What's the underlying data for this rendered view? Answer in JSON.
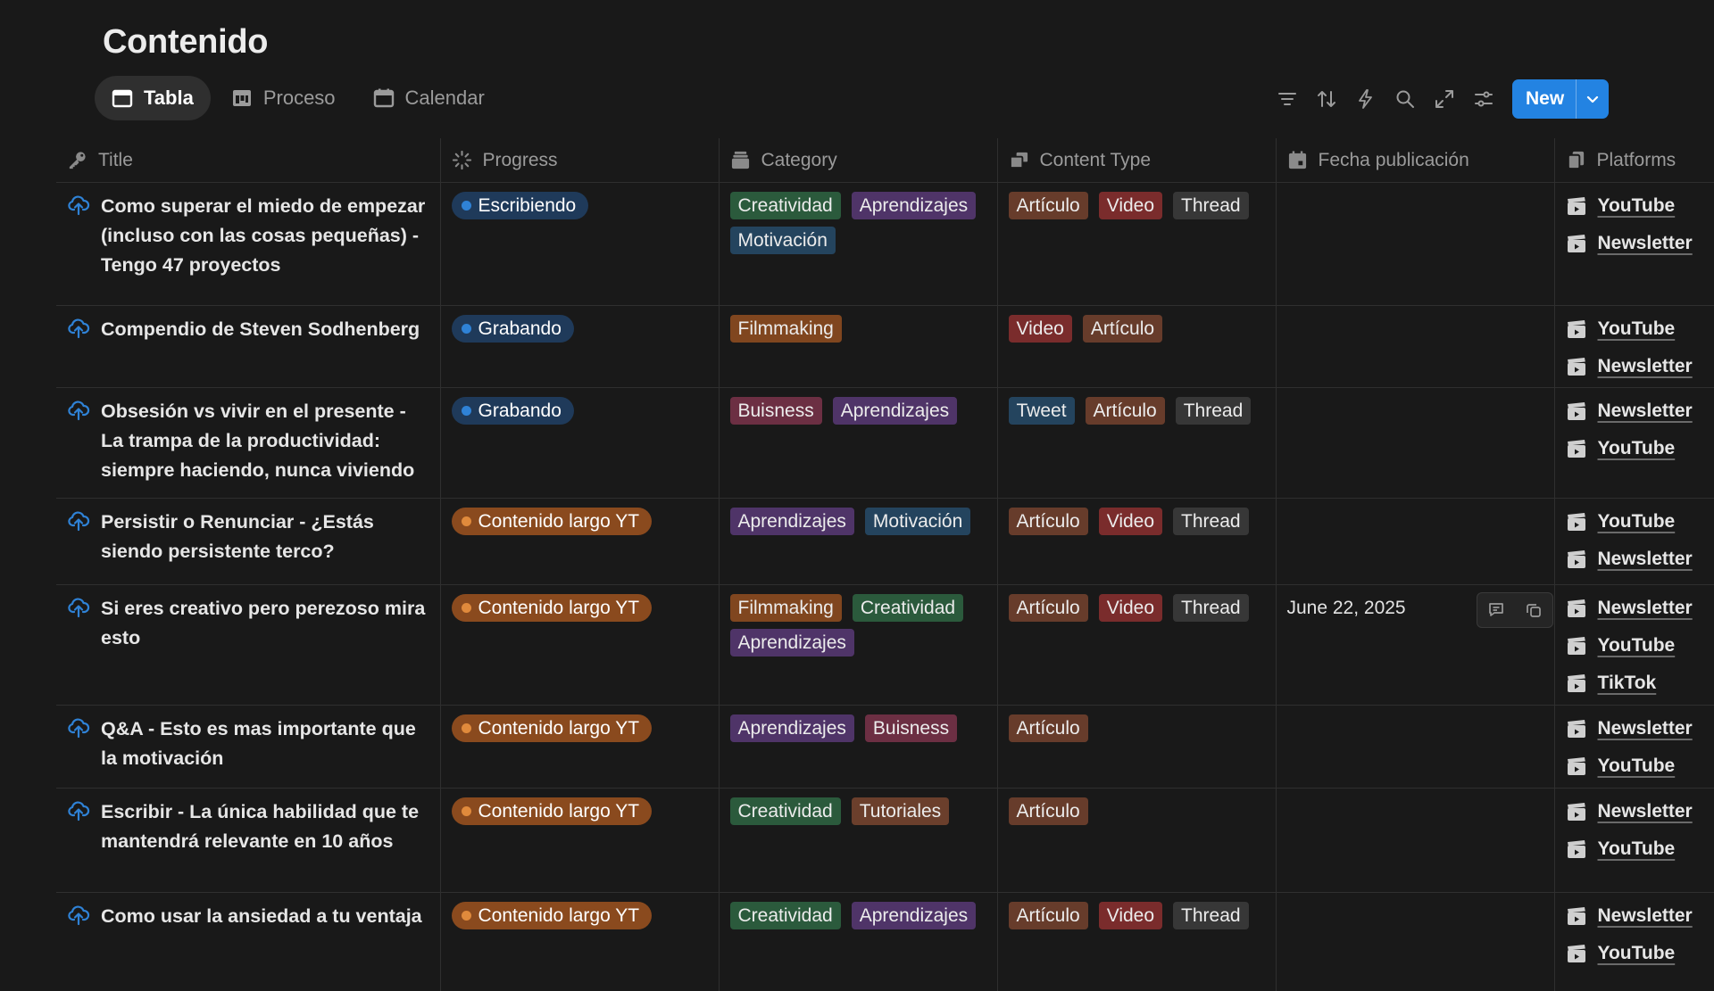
{
  "page": {
    "title": "Contenido"
  },
  "views": [
    {
      "label": "Tabla",
      "icon": "table-icon",
      "active": true
    },
    {
      "label": "Proceso",
      "icon": "board-icon",
      "active": false
    },
    {
      "label": "Calendar",
      "icon": "calendar-icon",
      "active": false
    }
  ],
  "toolbar": {
    "icons": [
      "filter-icon",
      "sort-icon",
      "automation-icon",
      "search-icon",
      "expand-icon",
      "settings-icon"
    ],
    "new_label": "New"
  },
  "columns": [
    {
      "label": "Title",
      "icon": "key-icon"
    },
    {
      "label": "Progress",
      "icon": "progress-icon"
    },
    {
      "label": "Category",
      "icon": "category-icon"
    },
    {
      "label": "Content Type",
      "icon": "content-type-icon"
    },
    {
      "label": "Fecha publicación",
      "icon": "date-icon"
    },
    {
      "label": "Platforms",
      "icon": "relation-icon"
    }
  ],
  "colors": {
    "accent": "#2383e2",
    "status": {
      "Escribiendo": {
        "bg": "#1f3a5a",
        "dot": "#2f82d6"
      },
      "Grabando": {
        "bg": "#1f3a5a",
        "dot": "#2f82d6"
      },
      "Contenido largo YT": {
        "bg": "#8a4a1e",
        "dot": "#e08a3c"
      }
    },
    "tags": {
      "Creatividad": "#2b5a3c",
      "Aprendizajes": "#4f3468",
      "Motivación": "#24445e",
      "Filmmaking": "#80461f",
      "Buisness": "#6c2f43",
      "Tutoriales": "#6b3f2c",
      "Artículo": "#673c2b",
      "Video": "#7a2c2c",
      "Thread": "#373737",
      "Tweet": "#24445e"
    }
  },
  "rows": [
    {
      "title": "Como superar el miedo de empezar (incluso con las cosas pequeñas) - Tengo 47 proyectos",
      "progress": "Escribiendo",
      "category": [
        "Creatividad",
        "Aprendizajes",
        "Motivación"
      ],
      "content_type": [
        "Artículo",
        "Video",
        "Thread"
      ],
      "fecha": "",
      "platforms": [
        "YouTube",
        "Newsletter"
      ]
    },
    {
      "title": "Compendio de Steven Sodhenberg",
      "progress": "Grabando",
      "category": [
        "Filmmaking"
      ],
      "content_type": [
        "Video",
        "Artículo"
      ],
      "fecha": "",
      "platforms": [
        "YouTube",
        "Newsletter"
      ]
    },
    {
      "title": "Obsesión vs vivir en el presente - La trampa de la productividad: siempre haciendo, nunca viviendo",
      "progress": "Grabando",
      "category": [
        "Buisness",
        "Aprendizajes"
      ],
      "content_type": [
        "Tweet",
        "Artículo",
        "Thread"
      ],
      "fecha": "",
      "platforms": [
        "Newsletter",
        "YouTube"
      ]
    },
    {
      "title": "Persistir o Renunciar - ¿Estás siendo persistente terco?",
      "progress": "Contenido largo YT",
      "category": [
        "Aprendizajes",
        "Motivación"
      ],
      "content_type": [
        "Artículo",
        "Video",
        "Thread"
      ],
      "fecha": "",
      "platforms": [
        "YouTube",
        "Newsletter"
      ]
    },
    {
      "title": "Si eres creativo pero perezoso mira esto",
      "progress": "Contenido largo YT",
      "category": [
        "Filmmaking",
        "Creatividad",
        "Aprendizajes"
      ],
      "content_type": [
        "Artículo",
        "Video",
        "Thread"
      ],
      "fecha": "June 22, 2025",
      "platforms": [
        "Newsletter",
        "YouTube",
        "TikTok"
      ]
    },
    {
      "title": "Q&A - Esto es mas importante que la motivación",
      "progress": "Contenido largo YT",
      "category": [
        "Aprendizajes",
        "Buisness"
      ],
      "content_type": [
        "Artículo"
      ],
      "fecha": "",
      "platforms": [
        "Newsletter",
        "YouTube"
      ]
    },
    {
      "title": "Escribir - La única habilidad que te mantendrá relevante en 10 años",
      "progress": "Contenido largo YT",
      "category": [
        "Creatividad",
        "Tutoriales"
      ],
      "content_type": [
        "Artículo"
      ],
      "fecha": "",
      "platforms": [
        "Newsletter",
        "YouTube"
      ]
    },
    {
      "title": "Como usar la ansiedad a tu ventaja",
      "progress": "Contenido largo YT",
      "category": [
        "Creatividad",
        "Aprendizajes"
      ],
      "content_type": [
        "Artículo",
        "Video",
        "Thread"
      ],
      "fecha": "",
      "platforms": [
        "Newsletter",
        "YouTube"
      ]
    }
  ]
}
